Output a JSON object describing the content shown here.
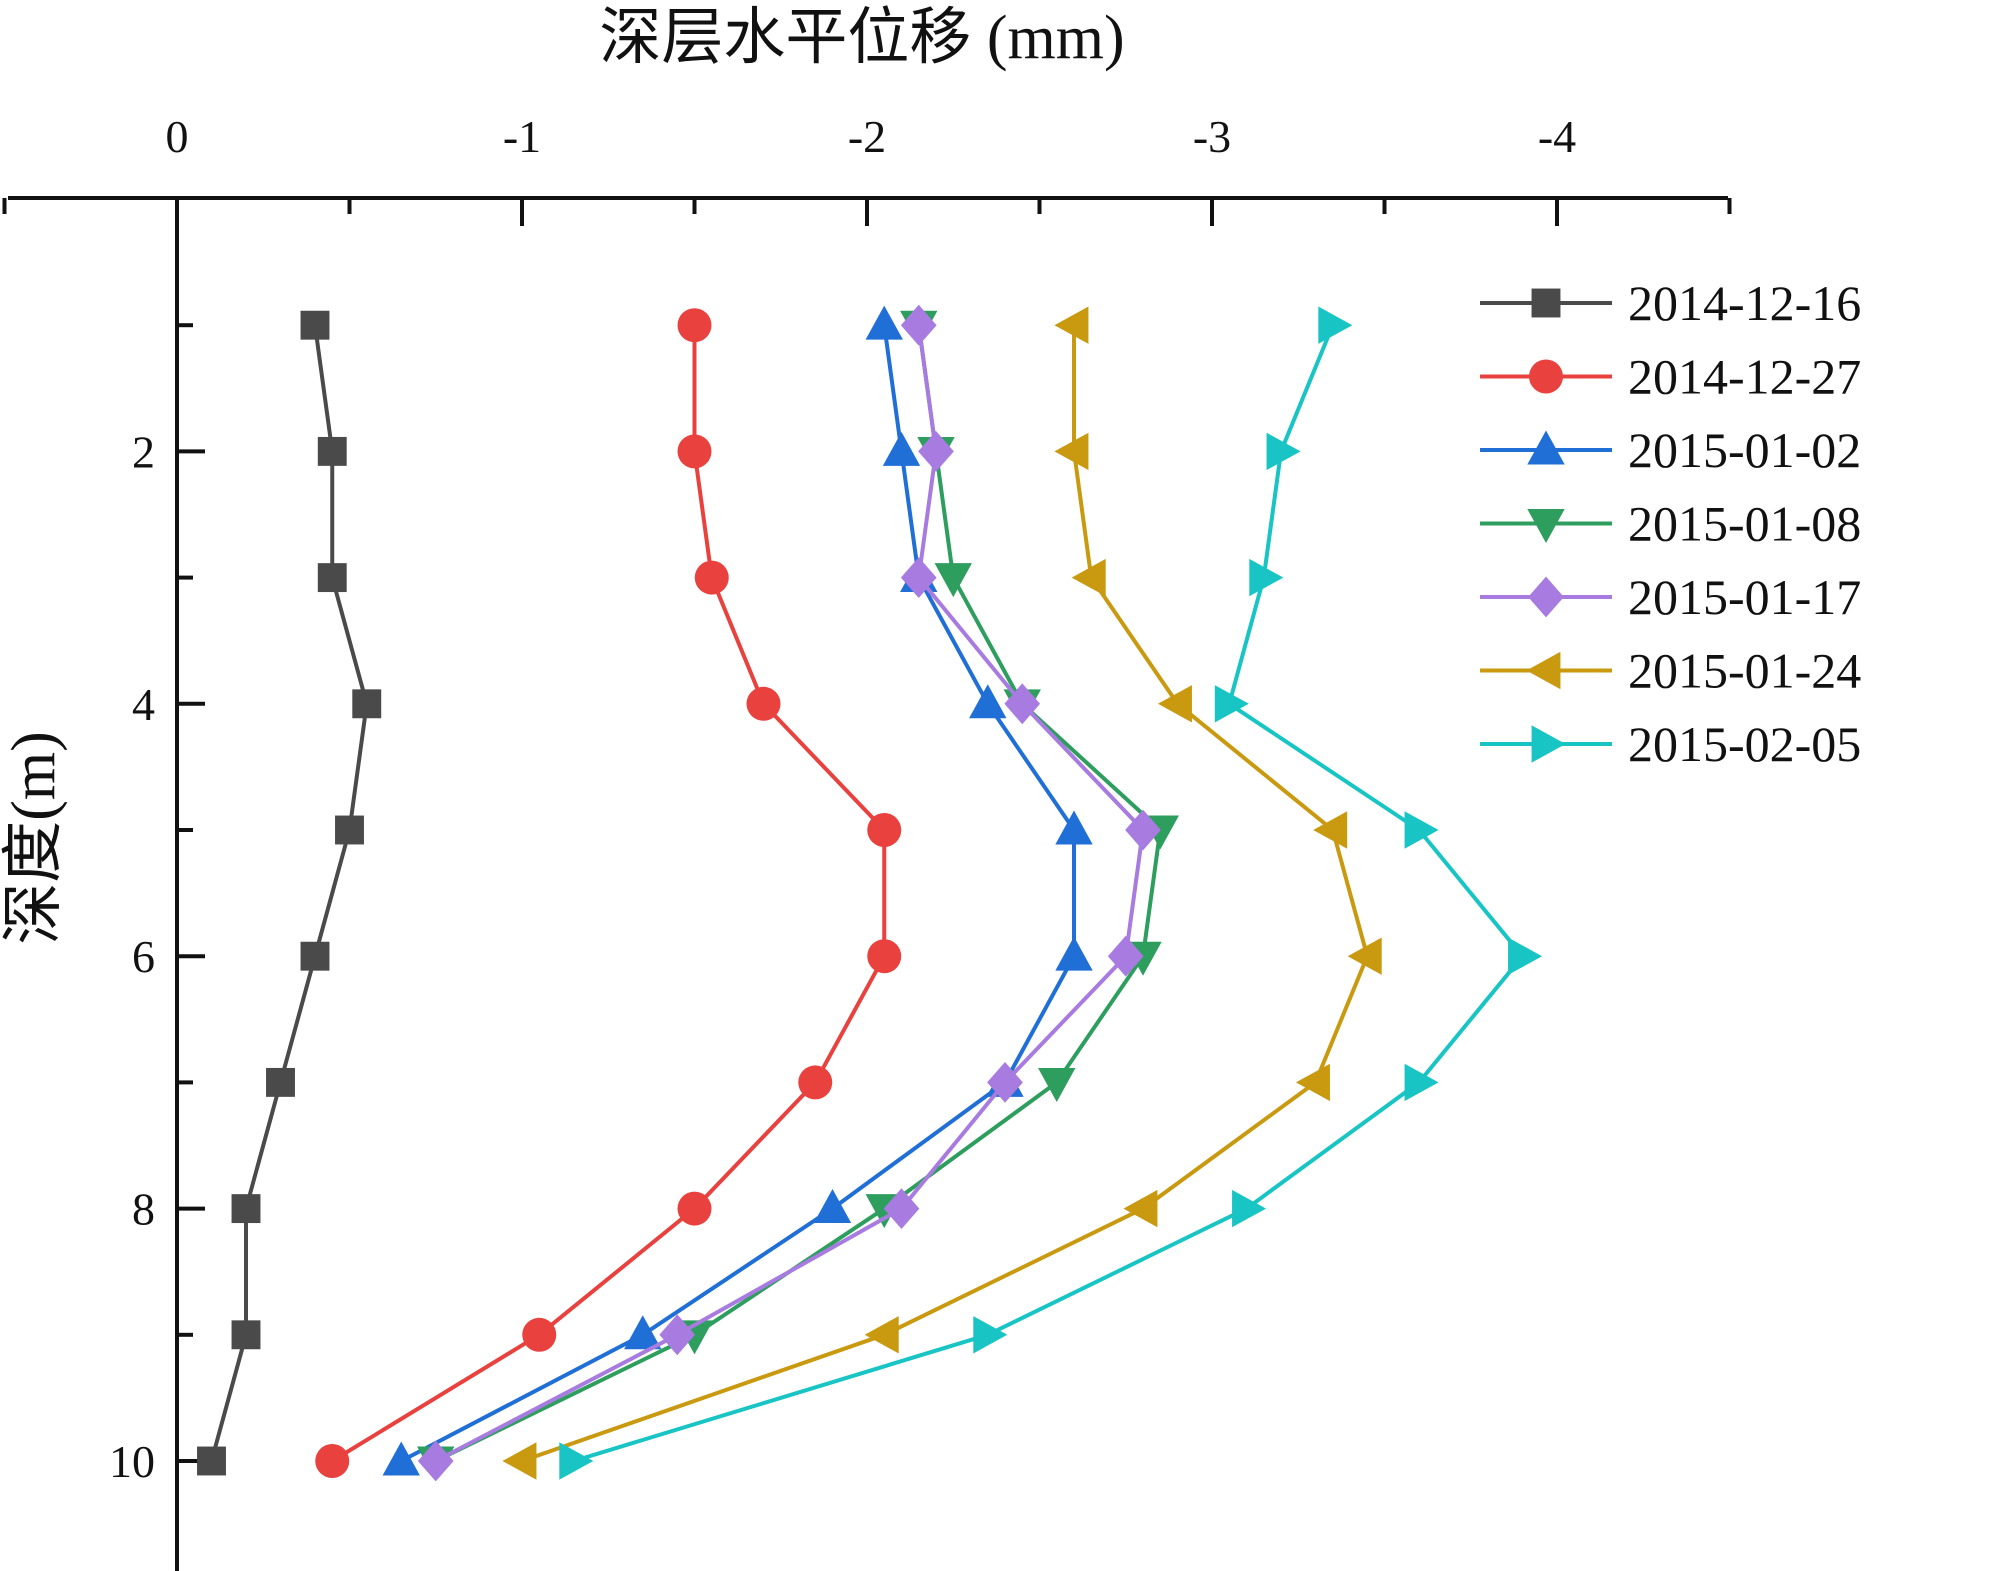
{
  "chart_data": {
    "type": "line",
    "title": "",
    "xlabel": "深层水平位移 (mm)",
    "ylabel": "深度(m)",
    "x_axis_position": "top",
    "y_axis_inverted": true,
    "xlim": [
      0.5,
      -4.5
    ],
    "ylim": [
      0,
      11
    ],
    "x_ticks": [
      0,
      -1,
      -2,
      -3,
      -4
    ],
    "x_tick_labels": [
      "0",
      "-1",
      "-2",
      "-3",
      "-4"
    ],
    "y_ticks": [
      2,
      4,
      6,
      8,
      10
    ],
    "y_tick_labels": [
      "2",
      "4",
      "6",
      "8",
      "10"
    ],
    "grid": false,
    "legend_position": "top-right",
    "depths": [
      1,
      2,
      3,
      4,
      5,
      6,
      7,
      8,
      9,
      10
    ],
    "series": [
      {
        "name": "2014-12-16",
        "color": "#4a4a4a",
        "marker": "square",
        "values": [
          -0.4,
          -0.45,
          -0.45,
          -0.55,
          -0.5,
          -0.4,
          -0.3,
          -0.2,
          -0.2,
          -0.1
        ]
      },
      {
        "name": "2014-12-27",
        "color": "#e8413e",
        "marker": "circle",
        "values": [
          -1.5,
          -1.5,
          -1.55,
          -1.7,
          -2.05,
          -2.05,
          -1.85,
          -1.5,
          -1.05,
          -0.45
        ]
      },
      {
        "name": "2015-01-02",
        "color": "#1f6fd6",
        "marker": "triangle-up",
        "values": [
          -2.05,
          -2.1,
          -2.15,
          -2.35,
          -2.6,
          -2.6,
          -2.4,
          -1.9,
          -1.35,
          -0.65
        ]
      },
      {
        "name": "2015-01-08",
        "color": "#2e9e5e",
        "marker": "triangle-down",
        "values": [
          -2.15,
          -2.2,
          -2.25,
          -2.45,
          -2.85,
          -2.8,
          -2.55,
          -2.05,
          -1.5,
          -0.75
        ]
      },
      {
        "name": "2015-01-17",
        "color": "#a77be0",
        "marker": "diamond",
        "values": [
          -2.15,
          -2.2,
          -2.15,
          -2.45,
          -2.8,
          -2.75,
          -2.4,
          -2.1,
          -1.45,
          -0.75
        ]
      },
      {
        "name": "2015-01-24",
        "color": "#c9990f",
        "marker": "triangle-left",
        "values": [
          -2.6,
          -2.6,
          -2.65,
          -2.9,
          -3.35,
          -3.45,
          -3.3,
          -2.8,
          -2.05,
          -1.0
        ]
      },
      {
        "name": "2015-02-05",
        "color": "#19c4c4",
        "marker": "triangle-right",
        "values": [
          -3.35,
          -3.2,
          -3.15,
          -3.05,
          -3.6,
          -3.9,
          -3.6,
          -3.1,
          -2.35,
          -1.15
        ]
      }
    ]
  }
}
